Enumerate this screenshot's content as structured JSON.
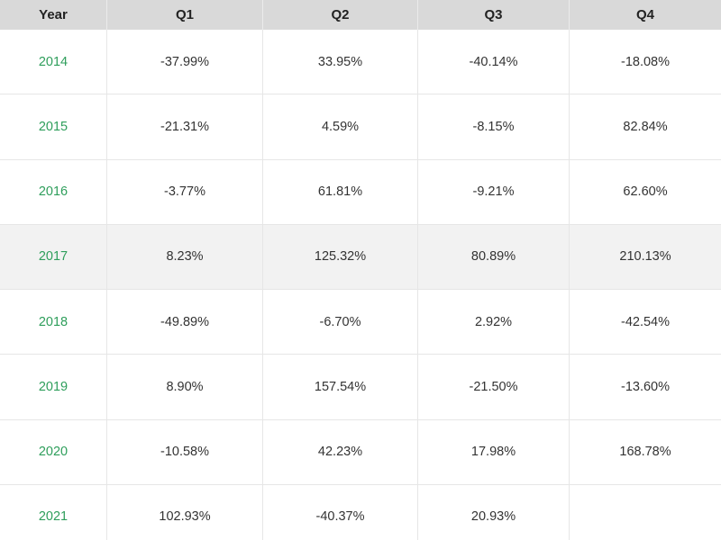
{
  "table": {
    "headers": [
      "Year",
      "Q1",
      "Q2",
      "Q3",
      "Q4"
    ],
    "rows": [
      {
        "year": "2014",
        "q1": "-37.99%",
        "q2": "33.95%",
        "q3": "-40.14%",
        "q4": "-18.08%"
      },
      {
        "year": "2015",
        "q1": "-21.31%",
        "q2": "4.59%",
        "q3": "-8.15%",
        "q4": "82.84%"
      },
      {
        "year": "2016",
        "q1": "-3.77%",
        "q2": "61.81%",
        "q3": "-9.21%",
        "q4": "62.60%"
      },
      {
        "year": "2017",
        "q1": "8.23%",
        "q2": "125.32%",
        "q3": "80.89%",
        "q4": "210.13%"
      },
      {
        "year": "2018",
        "q1": "-49.89%",
        "q2": "-6.70%",
        "q3": "2.92%",
        "q4": "-42.54%"
      },
      {
        "year": "2019",
        "q1": "8.90%",
        "q2": "157.54%",
        "q3": "-21.50%",
        "q4": "-13.60%"
      },
      {
        "year": "2020",
        "q1": "-10.58%",
        "q2": "42.23%",
        "q3": "17.98%",
        "q4": "168.78%"
      },
      {
        "year": "2021",
        "q1": "102.93%",
        "q2": "-40.37%",
        "q3": "20.93%",
        "q4": ""
      }
    ]
  },
  "colors": {
    "year_text": "#2e9e5b",
    "header_bg": "#d9d9d9",
    "highlight_row_bg": "#f2f2f2"
  }
}
